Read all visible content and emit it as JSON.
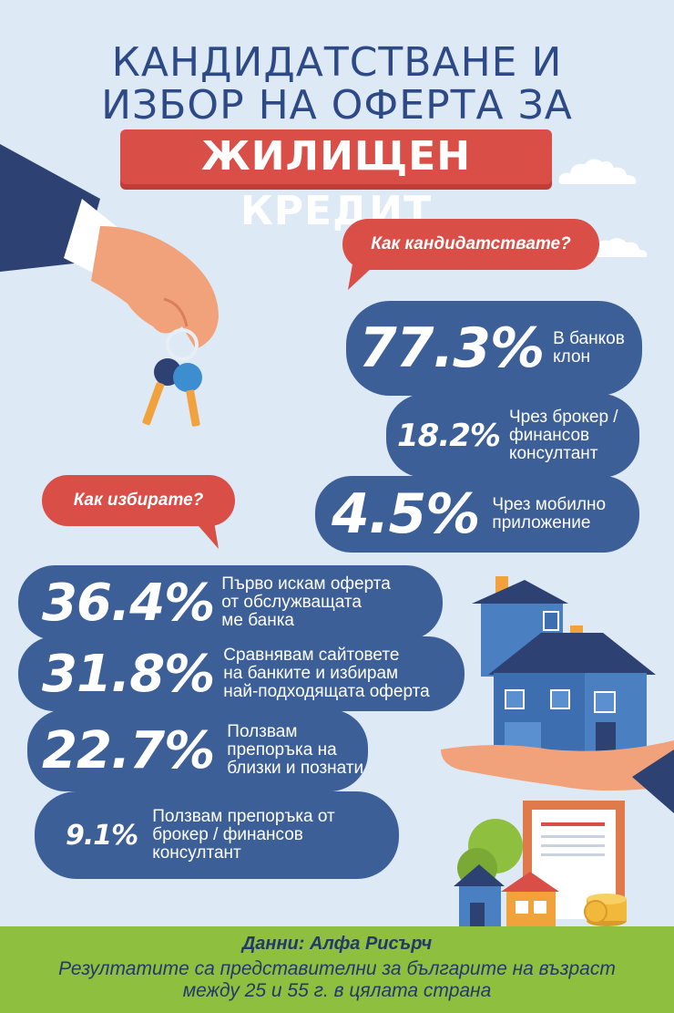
{
  "header": {
    "title_line1": "КАНДИДАТСТВАНЕ И",
    "title_line2": "ИЗБОР НА ОФЕРТА ЗА",
    "banner": "ЖИЛИЩЕН КРЕДИТ"
  },
  "apply": {
    "question": "Как кандидатствате?",
    "items": [
      {
        "pct": "77.3%",
        "label": "В банков\nклон"
      },
      {
        "pct": "18.2%",
        "label": "Чрез брокер /\nфинансов\nконсултант"
      },
      {
        "pct": "4.5%",
        "label": "Чрез мобилно\nприложение"
      }
    ]
  },
  "choose": {
    "question": "Как избирате?",
    "items": [
      {
        "pct": "36.4%",
        "label": "Първо искам оферта\nот обслужващата\nме банка"
      },
      {
        "pct": "31.8%",
        "label": "Сравнявам сайтовете\nна банките и избирам\nнай-подходящата оферта"
      },
      {
        "pct": "22.7%",
        "label": "Ползвам\nпрепоръка на\nблизки и познати"
      },
      {
        "pct": "9.1%",
        "label": "Ползвам препоръка от\nброкер / финансов\nконсултант"
      }
    ]
  },
  "footer": {
    "source": "Данни: Алфа Рисърч",
    "note_line1": "Резултатите са представителни за българите на възраст",
    "note_line2": "между 25 и 55 г. в цялата страна"
  },
  "colors": {
    "navy": "#3d5f98",
    "red": "#d94f47",
    "green": "#8fbf3f",
    "bg": "#dde9f5"
  },
  "icons": [
    "hand-with-keys-illustration",
    "cloud-icon",
    "hand-holding-house-illustration",
    "houses-illustration",
    "coins-icon"
  ]
}
